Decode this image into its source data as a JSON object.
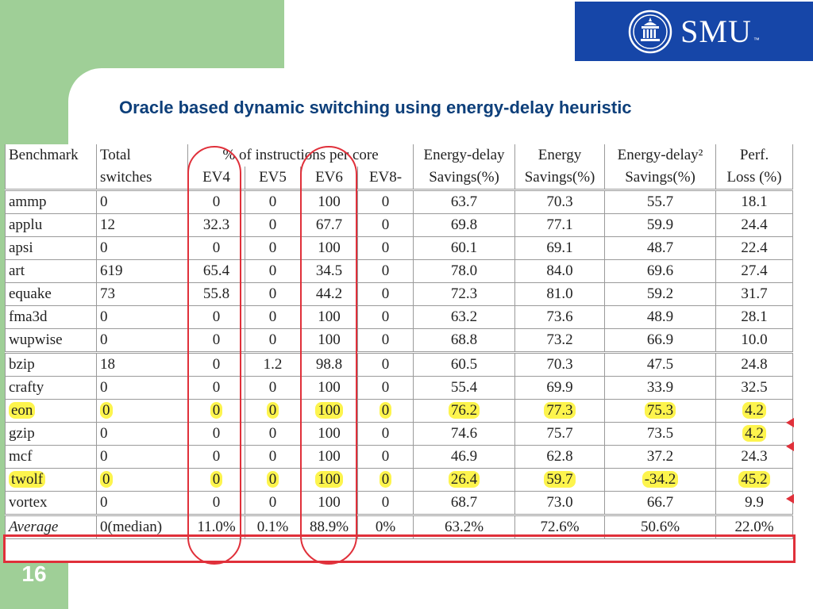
{
  "logo": {
    "text": "SMU",
    "tm": "™"
  },
  "slide": {
    "title": "Oracle based dynamic switching using energy-delay heuristic",
    "page_number": "16"
  },
  "table": {
    "headers": {
      "benchmark": "Benchmark",
      "total_1": "Total",
      "total_2": "switches",
      "instr": "% of instructions per core",
      "ev4": "EV4",
      "ev5": "EV5",
      "ev6": "EV6",
      "ev8": "EV8-",
      "ed_1": "Energy-delay",
      "ed_2": "Savings(%)",
      "en_1": "Energy",
      "en_2": "Savings(%)",
      "ed2_1": "Energy-delay²",
      "ed2_2": "Savings(%)",
      "perf_1": "Perf.",
      "perf_2": "Loss (%)"
    },
    "rows": [
      [
        "ammp",
        "0",
        "0",
        "0",
        "100",
        "0",
        "63.7",
        "70.3",
        "55.7",
        "18.1"
      ],
      [
        "applu",
        "12",
        "32.3",
        "0",
        "67.7",
        "0",
        "69.8",
        "77.1",
        "59.9",
        "24.4"
      ],
      [
        "apsi",
        "0",
        "0",
        "0",
        "100",
        "0",
        "60.1",
        "69.1",
        "48.7",
        "22.4"
      ],
      [
        "art",
        "619",
        "65.4",
        "0",
        "34.5",
        "0",
        "78.0",
        "84.0",
        "69.6",
        "27.4"
      ],
      [
        "equake",
        "73",
        "55.8",
        "0",
        "44.2",
        "0",
        "72.3",
        "81.0",
        "59.2",
        "31.7"
      ],
      [
        "fma3d",
        "0",
        "0",
        "0",
        "100",
        "0",
        "63.2",
        "73.6",
        "48.9",
        "28.1"
      ],
      [
        "wupwise",
        "0",
        "0",
        "0",
        "100",
        "0",
        "68.8",
        "73.2",
        "66.9",
        "10.0"
      ],
      [
        "bzip",
        "18",
        "0",
        "1.2",
        "98.8",
        "0",
        "60.5",
        "70.3",
        "47.5",
        "24.8"
      ],
      [
        "crafty",
        "0",
        "0",
        "0",
        "100",
        "0",
        "55.4",
        "69.9",
        "33.9",
        "32.5"
      ],
      [
        "eon",
        "0",
        "0",
        "0",
        "100",
        "0",
        "76.2",
        "77.3",
        "75.3",
        "4.2"
      ],
      [
        "gzip",
        "0",
        "0",
        "0",
        "100",
        "0",
        "74.6",
        "75.7",
        "73.5",
        "4.2"
      ],
      [
        "mcf",
        "0",
        "0",
        "0",
        "100",
        "0",
        "46.9",
        "62.8",
        "37.2",
        "24.3"
      ],
      [
        "twolf",
        "0",
        "0",
        "0",
        "100",
        "0",
        "26.4",
        "59.7",
        "-34.2",
        "45.2"
      ],
      [
        "vortex",
        "0",
        "0",
        "0",
        "100",
        "0",
        "68.7",
        "73.0",
        "66.7",
        "9.9"
      ]
    ],
    "average": [
      "Average",
      "0(median)",
      "11.0%",
      "0.1%",
      "88.9%",
      "0%",
      "63.2%",
      "72.6%",
      "50.6%",
      "22.0%"
    ]
  },
  "colors": {
    "accent_green": "#9fcf97",
    "title_blue": "#0d3f7a",
    "logo_blue": "#1646a8",
    "highlight": "#fdf44d",
    "annotation_red": "#e0303a"
  }
}
